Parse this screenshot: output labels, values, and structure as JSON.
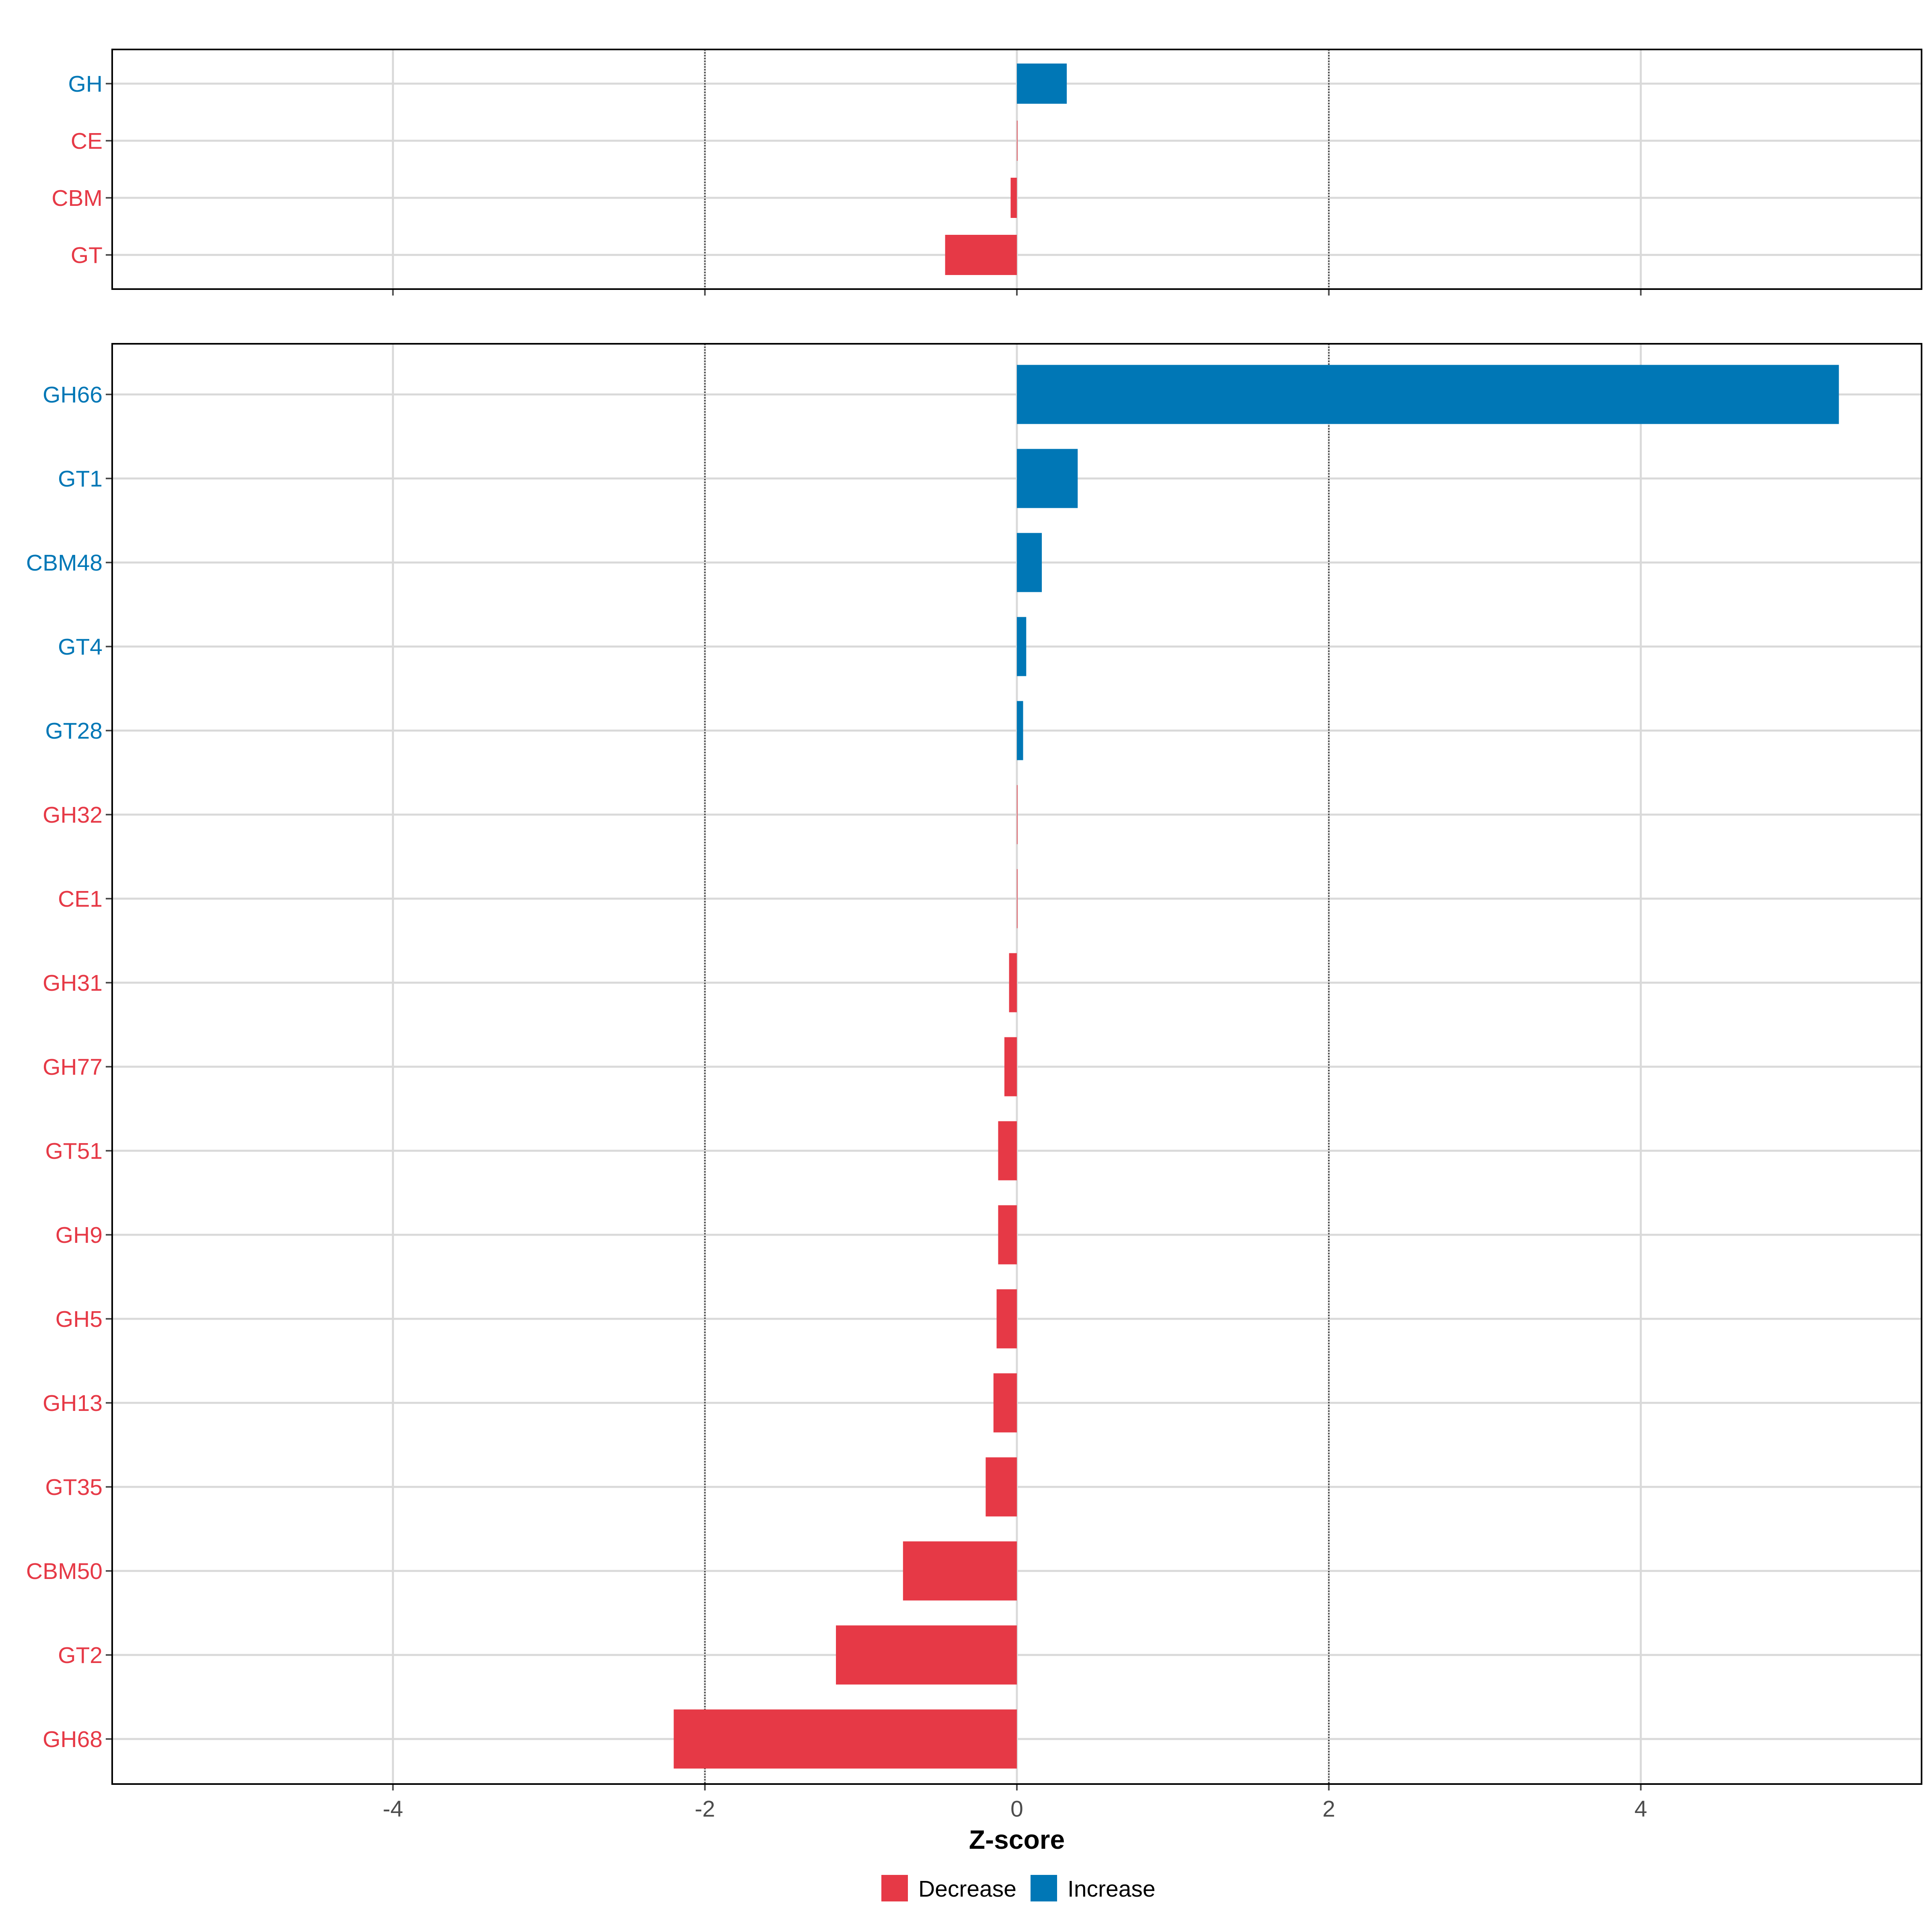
{
  "colors": {
    "decrease": "#E63946",
    "increase": "#0077B6",
    "grid": "#D9D9D9",
    "refline": "#333333",
    "tick_text": "#4D4D4D",
    "axis_title": "#000000",
    "legend_text": "#000000",
    "panel_border": "#000000"
  },
  "legend": {
    "position": "bottom",
    "items": [
      {
        "label": "Decrease",
        "color": "#E63946"
      },
      {
        "label": "Increase",
        "color": "#0077B6"
      }
    ]
  },
  "chart_data": [
    {
      "type": "bar",
      "orientation": "horizontal",
      "panel": "top",
      "categories": [
        "GH",
        "CE",
        "CBM",
        "GT"
      ],
      "values": [
        0.32,
        0.0,
        -0.04,
        -0.46
      ],
      "direction": [
        "Increase",
        "Decrease",
        "Decrease",
        "Decrease"
      ],
      "xlim": [
        -5.8,
        5.8
      ],
      "x_ticks": [
        -4,
        -2,
        0,
        2,
        4
      ],
      "x_tick_labels": [],
      "reference_lines": [
        -2,
        2
      ],
      "grid": true
    },
    {
      "type": "bar",
      "orientation": "horizontal",
      "panel": "bottom",
      "categories": [
        "GH66",
        "GT1",
        "CBM48",
        "GT4",
        "GT28",
        "GH32",
        "CE1",
        "GH31",
        "GH77",
        "GT51",
        "GH9",
        "GH5",
        "GH13",
        "GT35",
        "CBM50",
        "GT2",
        "GH68"
      ],
      "values": [
        5.27,
        0.39,
        0.16,
        0.06,
        0.04,
        0.0,
        0.0,
        -0.05,
        -0.08,
        -0.12,
        -0.12,
        -0.13,
        -0.15,
        -0.2,
        -0.73,
        -1.16,
        -2.2
      ],
      "direction": [
        "Increase",
        "Increase",
        "Increase",
        "Increase",
        "Increase",
        "Decrease",
        "Decrease",
        "Decrease",
        "Decrease",
        "Decrease",
        "Decrease",
        "Decrease",
        "Decrease",
        "Decrease",
        "Decrease",
        "Decrease",
        "Decrease"
      ],
      "xlim": [
        -5.8,
        5.8
      ],
      "x_ticks": [
        -4,
        -2,
        0,
        2,
        4
      ],
      "x_tick_labels": [
        "-4",
        "-2",
        "0",
        "2",
        "4"
      ],
      "reference_lines": [
        -2,
        2
      ],
      "grid": true,
      "xlabel": "Z-score"
    }
  ]
}
